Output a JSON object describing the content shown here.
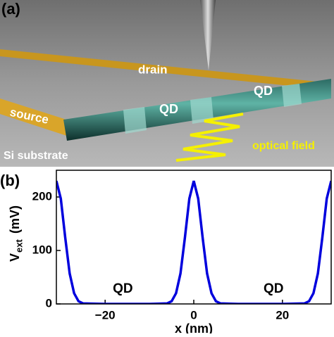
{
  "panel_a": {
    "label": "(a)",
    "drain": "drain",
    "source": "source",
    "qd_left": "QD",
    "qd_right": "QD",
    "substrate": "Si substrate",
    "optical": "optical field"
  },
  "chart_data": {
    "type": "line",
    "panel_label": "(b)",
    "ylabel": {
      "main": "V",
      "sub": "ext",
      "unit": "(mV)"
    },
    "xlabel": "x (nm)",
    "annotations": [
      {
        "text": "QD",
        "x": -16
      },
      {
        "text": "QD",
        "x": 18
      }
    ],
    "x": [
      -31,
      -30,
      -29,
      -28,
      -27,
      -26,
      -25,
      -20,
      -10,
      -6,
      -5,
      -4,
      -3,
      -2,
      -1,
      0,
      1,
      2,
      3,
      4,
      5,
      6,
      10,
      20,
      25,
      26,
      27,
      28,
      29,
      30,
      31
    ],
    "series": [
      {
        "color": "#0000dd",
        "values": [
          230,
          197,
          124,
          57,
          20,
          5,
          1,
          0,
          0,
          1,
          5,
          20,
          57,
          124,
          197,
          230,
          197,
          124,
          57,
          20,
          5,
          1,
          0,
          0,
          1,
          5,
          20,
          57,
          124,
          197,
          230
        ]
      }
    ],
    "xlim": [
      -31,
      31
    ],
    "ylim": [
      0,
      250
    ],
    "xticks": [
      {
        "value": -20,
        "label": "−20"
      },
      0,
      20
    ],
    "yticks": [
      0,
      100,
      200
    ]
  }
}
